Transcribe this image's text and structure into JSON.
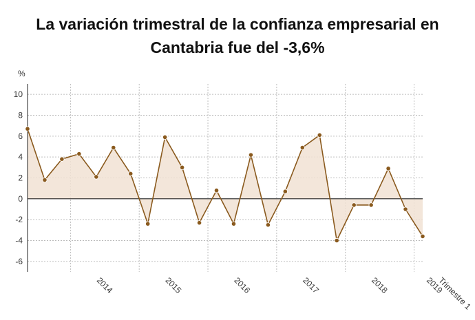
{
  "title_line1": "La variación trimestral de la confianza empresarial en",
  "title_line2": "Cantabria fue del -3,6%",
  "chart_data": {
    "type": "area",
    "title": "La variación trimestral de la confianza empresarial en Cantabria fue del -3,6%",
    "ylabel": "%",
    "xlabel": "",
    "ylim": [
      -7,
      11
    ],
    "y_ticks": [
      10,
      8,
      6,
      4,
      2,
      0,
      -2,
      -4,
      -6
    ],
    "x_tick_labels": [
      "2014",
      "2015",
      "2016",
      "2017",
      "2018",
      "2019",
      "Trimestre 1"
    ],
    "grid": true,
    "colors": {
      "line": "#8a5a1e",
      "fill": "#f1e2d3",
      "point": "#8a5a1e",
      "zero_line": "#222222"
    },
    "series": [
      {
        "values": [
          6.7,
          1.8,
          3.8,
          4.3,
          2.1,
          4.9,
          2.4,
          -2.4,
          5.9,
          3.0,
          -2.3,
          0.8,
          -2.4,
          4.2,
          -2.5,
          0.7,
          4.9,
          6.1,
          -4.0,
          -0.6,
          -0.6,
          2.9,
          -1.0,
          -3.6
        ]
      }
    ]
  }
}
